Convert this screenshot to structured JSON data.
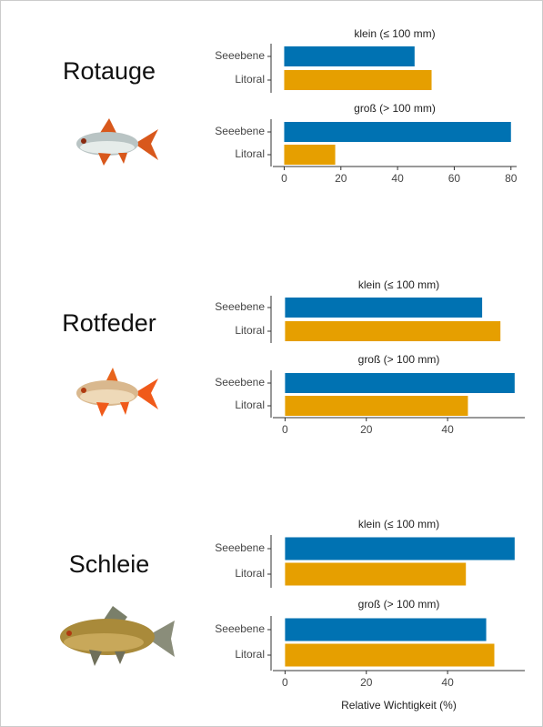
{
  "chart_data": [
    {
      "type": "bar",
      "title": "Rotauge",
      "facets": [
        {
          "subtitle": "klein (≤ 100 mm)",
          "categories": [
            "Seeebene",
            "Litoral"
          ],
          "values": [
            46,
            52
          ]
        },
        {
          "subtitle": "groß (> 100 mm)",
          "categories": [
            "Seeebene",
            "Litoral"
          ],
          "values": [
            80,
            18
          ]
        }
      ],
      "colors": [
        "#0072b2",
        "#e69f00"
      ],
      "xlim": [
        -4,
        82
      ],
      "xticks": [
        0,
        20,
        40,
        60,
        80
      ]
    },
    {
      "type": "bar",
      "title": "Rotfeder",
      "facets": [
        {
          "subtitle": "klein (≤ 100 mm)",
          "categories": [
            "Seeebene",
            "Litoral"
          ],
          "values": [
            48.5,
            53
          ]
        },
        {
          "subtitle": "groß (> 100 mm)",
          "categories": [
            "Seeebene",
            "Litoral"
          ],
          "values": [
            56.5,
            45
          ]
        }
      ],
      "colors": [
        "#0072b2",
        "#e69f00"
      ],
      "xlim": [
        -3,
        59
      ],
      "xticks": [
        0,
        20,
        40
      ]
    },
    {
      "type": "bar",
      "title": "Schleie",
      "facets": [
        {
          "subtitle": "klein (≤ 100 mm)",
          "categories": [
            "Seeebene",
            "Litoral"
          ],
          "values": [
            56.5,
            44.5
          ]
        },
        {
          "subtitle": "groß (> 100 mm)",
          "categories": [
            "Seeebene",
            "Litoral"
          ],
          "values": [
            49.5,
            51.5
          ]
        }
      ],
      "colors": [
        "#0072b2",
        "#e69f00"
      ],
      "xlim": [
        -3,
        59
      ],
      "xticks": [
        0,
        20,
        40
      ],
      "xlabel": "Relative Wichtigkeit (%)"
    }
  ]
}
